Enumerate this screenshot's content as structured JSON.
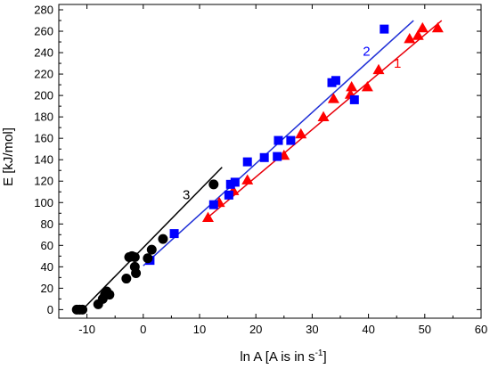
{
  "chart_data": {
    "type": "scatter",
    "title": "",
    "xlabel": "ln A [A is in s",
    "xlabel_sup": "-1",
    "xlabel_end": "]",
    "ylabel": "E [kJ/mol]",
    "xlim": [
      -15,
      60
    ],
    "ylim": [
      -8,
      285
    ],
    "xticks": [
      -10,
      0,
      10,
      20,
      30,
      40,
      50,
      60
    ],
    "yticks": [
      0,
      20,
      40,
      60,
      80,
      100,
      120,
      140,
      160,
      180,
      200,
      220,
      240,
      260,
      280
    ],
    "grid": false,
    "legend": "none",
    "series": [
      {
        "name": "1",
        "marker": "triangle",
        "color": "#ff0000",
        "fit_color": "#e8000b",
        "fit": {
          "x0": 11,
          "y0": 84,
          "x1": 53,
          "y1": 270
        },
        "label_pos": [
          44.5,
          226
        ],
        "points": [
          [
            11.5,
            86
          ],
          [
            13.5,
            100
          ],
          [
            16,
            111
          ],
          [
            18.5,
            121
          ],
          [
            25,
            144
          ],
          [
            28,
            164
          ],
          [
            32,
            180
          ],
          [
            33.8,
            197
          ],
          [
            36.8,
            201
          ],
          [
            37,
            208
          ],
          [
            39.8,
            208
          ],
          [
            41.8,
            224
          ],
          [
            47.3,
            253
          ],
          [
            48.8,
            256
          ],
          [
            49.6,
            263
          ],
          [
            52.3,
            263
          ]
        ]
      },
      {
        "name": "2",
        "marker": "square",
        "color": "#0000ff",
        "fit_color": "#1f2fd6",
        "fit": {
          "x0": 0,
          "y0": 41,
          "x1": 48,
          "y1": 270
        },
        "label_pos": [
          39,
          237
        ],
        "points": [
          [
            1.2,
            46
          ],
          [
            5.5,
            71
          ],
          [
            12.5,
            98
          ],
          [
            15.2,
            107
          ],
          [
            15.5,
            117
          ],
          [
            16.3,
            119
          ],
          [
            18.5,
            138
          ],
          [
            21.5,
            142
          ],
          [
            23.8,
            143
          ],
          [
            24,
            158
          ],
          [
            26.2,
            158
          ],
          [
            33.5,
            212
          ],
          [
            34.2,
            214
          ],
          [
            37.5,
            196
          ],
          [
            42.8,
            262
          ]
        ]
      },
      {
        "name": "3",
        "marker": "circle",
        "color": "#000000",
        "fit_color": "#000000",
        "fit": {
          "x0": -10.8,
          "y0": 0,
          "x1": 14,
          "y1": 133
        },
        "label_pos": [
          7,
          103
        ],
        "points": [
          [
            -11.8,
            0
          ],
          [
            -11.3,
            0
          ],
          [
            -10.8,
            0
          ],
          [
            -8,
            5
          ],
          [
            -7.2,
            10
          ],
          [
            -6.8,
            14
          ],
          [
            -6.5,
            17
          ],
          [
            -6,
            14
          ],
          [
            -3,
            29
          ],
          [
            -2.5,
            49
          ],
          [
            -2,
            50
          ],
          [
            -1.5,
            49
          ],
          [
            -1.5,
            40
          ],
          [
            -1.3,
            34
          ],
          [
            0.8,
            48
          ],
          [
            1.5,
            56
          ],
          [
            3.5,
            66
          ],
          [
            12.5,
            117
          ]
        ]
      }
    ]
  }
}
